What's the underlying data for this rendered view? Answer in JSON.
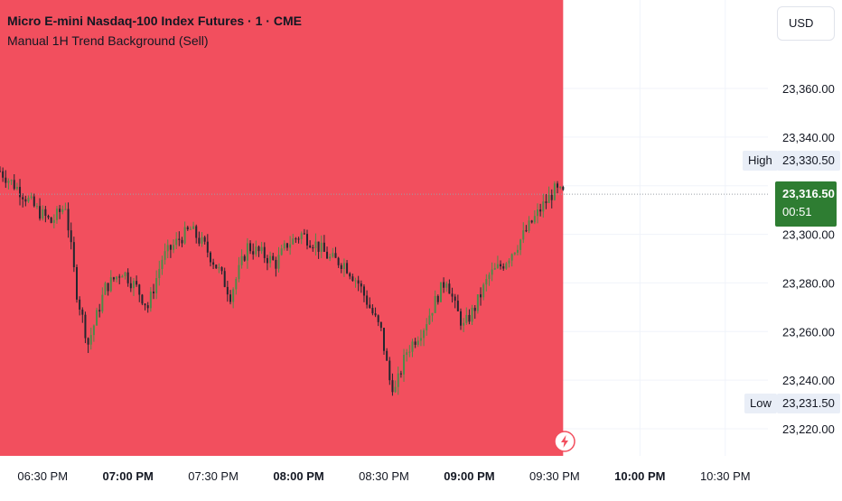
{
  "header": {
    "symbol_line": "Micro E-mini Nasdaq-100 Index Futures · 1 · CME",
    "indicator_line": "Manual 1H Trend Background (Sell)"
  },
  "currency_button": {
    "label": "USD"
  },
  "colors": {
    "sell_background": "#f24f5e",
    "candle_up": "#4f8a48",
    "candle_down": "#23262e",
    "last_price_tag": "#2e7d32"
  },
  "icons": {
    "bolt": "lightning-bolt-icon"
  },
  "chart_data": {
    "type": "candlestick",
    "title": "Micro E-mini Nasdaq-100 Index Futures · 1 · CME",
    "y_axis": {
      "range": [
        23210,
        23380
      ],
      "ticks": [
        "23,360.00",
        "23,340.00",
        "23,320.00",
        "23,300.00",
        "23,280.00",
        "23,260.00",
        "23,240.00",
        "23,220.00"
      ],
      "tick_values": [
        23360,
        23340,
        23320,
        23300,
        23280,
        23260,
        23240,
        23220
      ]
    },
    "x_axis": {
      "ticks": [
        "06:30 PM",
        "07:00 PM",
        "07:30 PM",
        "08:00 PM",
        "08:30 PM",
        "09:00 PM",
        "09:30 PM",
        "10:00 PM",
        "10:30 PM"
      ],
      "bold_ticks": [
        1,
        3,
        5,
        7
      ],
      "visible_start": "06:15 PM",
      "visible_end": "10:45 PM"
    },
    "background_shading": {
      "start": "06:15 PM",
      "end": "09:33 PM",
      "label": "Sell"
    },
    "high": {
      "label": "High",
      "value": "23,330.50"
    },
    "low": {
      "label": "Low",
      "value": "23,231.50"
    },
    "last": {
      "value": "23,316.50",
      "price": 23316.5,
      "countdown": "00:51"
    },
    "close_path": [
      [
        "06:15 PM",
        23326
      ],
      [
        "06:22 PM",
        23318
      ],
      [
        "06:28 PM",
        23310
      ],
      [
        "06:33 PM",
        23305
      ],
      [
        "06:38 PM",
        23312
      ],
      [
        "06:42 PM",
        23276
      ],
      [
        "06:46 PM",
        23255
      ],
      [
        "06:52 PM",
        23278
      ],
      [
        "06:58 PM",
        23285
      ],
      [
        "07:03 PM",
        23278
      ],
      [
        "07:07 PM",
        23270
      ],
      [
        "07:12 PM",
        23290
      ],
      [
        "07:18 PM",
        23298
      ],
      [
        "07:22 PM",
        23302
      ],
      [
        "07:27 PM",
        23295
      ],
      [
        "07:32 PM",
        23285
      ],
      [
        "07:36 PM",
        23275
      ],
      [
        "07:42 PM",
        23295
      ],
      [
        "07:47 PM",
        23292
      ],
      [
        "07:52 PM",
        23288
      ],
      [
        "07:56 PM",
        23296
      ],
      [
        "08:01 PM",
        23300
      ],
      [
        "08:06 PM",
        23296
      ],
      [
        "08:11 PM",
        23290
      ],
      [
        "08:16 PM",
        23288
      ],
      [
        "08:21 PM",
        23280
      ],
      [
        "08:25 PM",
        23270
      ],
      [
        "08:29 PM",
        23260
      ],
      [
        "08:32 PM",
        23240
      ],
      [
        "08:34 PM",
        23236
      ],
      [
        "08:38 PM",
        23252
      ],
      [
        "08:44 PM",
        23262
      ],
      [
        "08:49 PM",
        23275
      ],
      [
        "08:52 PM",
        23282
      ],
      [
        "08:55 PM",
        23270
      ],
      [
        "08:58 PM",
        23262
      ],
      [
        "09:02 PM",
        23270
      ],
      [
        "09:07 PM",
        23283
      ],
      [
        "09:12 PM",
        23288
      ],
      [
        "09:17 PM",
        23296
      ],
      [
        "09:22 PM",
        23305
      ],
      [
        "09:26 PM",
        23312
      ],
      [
        "09:30 PM",
        23318
      ],
      [
        "09:33 PM",
        23316.5
      ]
    ]
  }
}
